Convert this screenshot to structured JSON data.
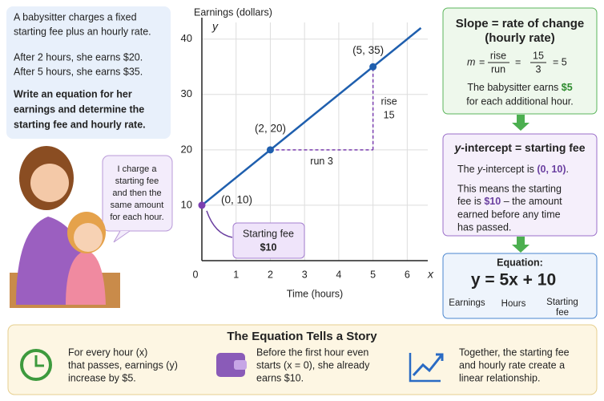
{
  "chart_data": {
    "type": "line",
    "y_label": "Earnings (dollars)",
    "x_label": "Time (hours)",
    "x_axis_name": "x",
    "y_axis_name": "y",
    "xlim": [
      0,
      6.6
    ],
    "ylim": [
      0,
      43
    ],
    "xticks": [
      0,
      1,
      2,
      3,
      4,
      5,
      6
    ],
    "yticks": [
      10,
      20,
      30,
      40
    ],
    "grid": true,
    "series": [
      {
        "color": "#1f5fae",
        "x": [
          0,
          6.4
        ],
        "values": [
          10,
          42
        ]
      }
    ],
    "points": [
      {
        "x": 0,
        "y": 10,
        "label": "(0, 10)",
        "color": "#7b3fb0"
      },
      {
        "x": 2,
        "y": 20,
        "label": "(2, 20)",
        "color": "#1f5fae"
      },
      {
        "x": 5,
        "y": 35,
        "label": "(5, 35)",
        "color": "#1f5fae"
      }
    ],
    "run_label": "run 3",
    "rise_label": [
      "rise",
      "15"
    ],
    "callout": [
      "Starting fee",
      "$10"
    ]
  },
  "problem": {
    "intro": [
      "A babysitter charges a fixed",
      "starting fee plus an hourly rate."
    ],
    "given": [
      "After 2 hours, she earns $20.",
      "After 5 hours, she earns $35."
    ],
    "question": [
      "Write an equation for her",
      "earnings and determine the",
      "starting fee and hourly rate."
    ]
  },
  "speech": [
    "I charge a",
    "starting fee",
    "and then the",
    "same amount",
    "for each hour."
  ],
  "slope": {
    "title": [
      "Slope = rate of change",
      "(hourly rate)"
    ],
    "m": "m",
    "eq": "=",
    "rise": "rise",
    "run": "run",
    "eq2": "=",
    "num": "15",
    "den": "3",
    "result": "= 5",
    "line1": [
      "The babysitter earns ",
      "$5"
    ],
    "line2": "for each additional hour."
  },
  "intercept": {
    "title": [
      "y",
      "-intercept = starting fee"
    ],
    "line1": [
      "The ",
      "y",
      "-intercept is ",
      "(0, 10)",
      "."
    ],
    "line2": "This means the starting",
    "line3": [
      "fee is ",
      "$10",
      " – the amount"
    ],
    "line4": "earned before any time",
    "line5": "has passed."
  },
  "equation": {
    "title": "Equation:",
    "formula": "y = 5x + 10",
    "labels": [
      "Earnings",
      "Hours",
      "Starting",
      "fee"
    ]
  },
  "story": {
    "title": "The Equation Tells a Story",
    "items": [
      [
        "For every hour (x)",
        "that passes, earnings (y)",
        "increase by $5."
      ],
      [
        "Before the first hour even",
        "starts (x = 0), she already",
        "earns $10."
      ],
      [
        "Together, the starting fee",
        "and hourly rate create a",
        "linear relationship."
      ]
    ]
  }
}
